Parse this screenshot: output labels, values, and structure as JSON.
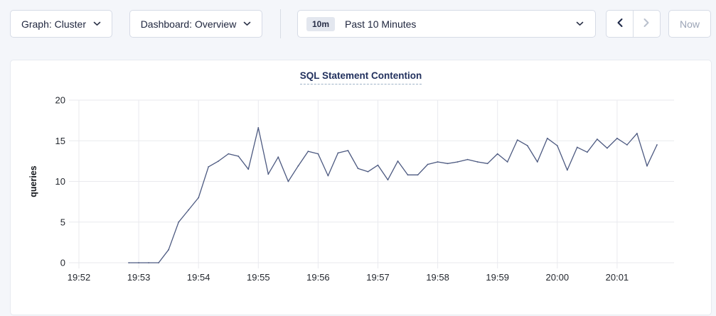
{
  "toolbar": {
    "graph_dropdown_label": "Graph: Cluster",
    "dashboard_dropdown_label": "Dashboard: Overview",
    "time_range": {
      "badge": "10m",
      "label": "Past 10 Minutes"
    },
    "now_button_label": "Now"
  },
  "colors": {
    "page_bg": "#f4f6fa",
    "card_border": "#e7eaf0",
    "control_border": "#d6dbe6",
    "toolbar_text": "#20273f",
    "disabled_text": "#9ba4b6",
    "badge_bg": "#e3e7ef",
    "title_navy": "#22315e",
    "grid": "#e9eaee",
    "tick_text": "#23272e",
    "line": "#4c5980"
  },
  "chart_data": {
    "type": "line",
    "title": "SQL Statement Contention",
    "xlabel": "",
    "ylabel": "queries",
    "ylim": [
      0,
      20
    ],
    "yticks": [
      0,
      5,
      10,
      15,
      20
    ],
    "xticks": [
      "19:52",
      "19:53",
      "19:54",
      "19:55",
      "19:56",
      "19:57",
      "19:58",
      "19:59",
      "20:00",
      "20:01"
    ],
    "grid": true,
    "legend_position": "none",
    "series": [
      {
        "name": "queries",
        "points": [
          [
            "19:52:50",
            0
          ],
          [
            "19:53:00",
            0
          ],
          [
            "19:53:10",
            0
          ],
          [
            "19:53:20",
            0
          ],
          [
            "19:53:30",
            1.6
          ],
          [
            "19:53:40",
            5.0
          ],
          [
            "19:53:50",
            6.5
          ],
          [
            "19:54:00",
            8.0
          ],
          [
            "19:54:10",
            11.8
          ],
          [
            "19:54:20",
            12.5
          ],
          [
            "19:54:30",
            13.4
          ],
          [
            "19:54:40",
            13.1
          ],
          [
            "19:54:50",
            11.5
          ],
          [
            "19:55:00",
            16.6
          ],
          [
            "19:55:10",
            10.9
          ],
          [
            "19:55:20",
            13.0
          ],
          [
            "19:55:30",
            10.0
          ],
          [
            "19:55:40",
            11.9
          ],
          [
            "19:55:50",
            13.7
          ],
          [
            "19:56:00",
            13.4
          ],
          [
            "19:56:10",
            10.7
          ],
          [
            "19:56:20",
            13.5
          ],
          [
            "19:56:30",
            13.8
          ],
          [
            "19:56:40",
            11.6
          ],
          [
            "19:56:50",
            11.2
          ],
          [
            "19:57:00",
            12.0
          ],
          [
            "19:57:10",
            10.2
          ],
          [
            "19:57:20",
            12.5
          ],
          [
            "19:57:30",
            10.8
          ],
          [
            "19:57:40",
            10.8
          ],
          [
            "19:57:50",
            12.1
          ],
          [
            "19:58:00",
            12.4
          ],
          [
            "19:58:10",
            12.2
          ],
          [
            "19:58:20",
            12.4
          ],
          [
            "19:58:30",
            12.7
          ],
          [
            "19:58:40",
            12.4
          ],
          [
            "19:58:50",
            12.2
          ],
          [
            "19:59:00",
            13.4
          ],
          [
            "19:59:10",
            12.4
          ],
          [
            "19:59:20",
            15.1
          ],
          [
            "19:59:30",
            14.4
          ],
          [
            "19:59:40",
            12.4
          ],
          [
            "19:59:50",
            15.3
          ],
          [
            "20:00:00",
            14.4
          ],
          [
            "20:00:10",
            11.4
          ],
          [
            "20:00:20",
            14.2
          ],
          [
            "20:00:30",
            13.6
          ],
          [
            "20:00:40",
            15.2
          ],
          [
            "20:00:50",
            14.1
          ],
          [
            "20:01:00",
            15.3
          ],
          [
            "20:01:10",
            14.5
          ],
          [
            "20:01:20",
            15.9
          ],
          [
            "20:01:30",
            11.9
          ],
          [
            "20:01:40",
            14.5
          ]
        ]
      }
    ]
  }
}
